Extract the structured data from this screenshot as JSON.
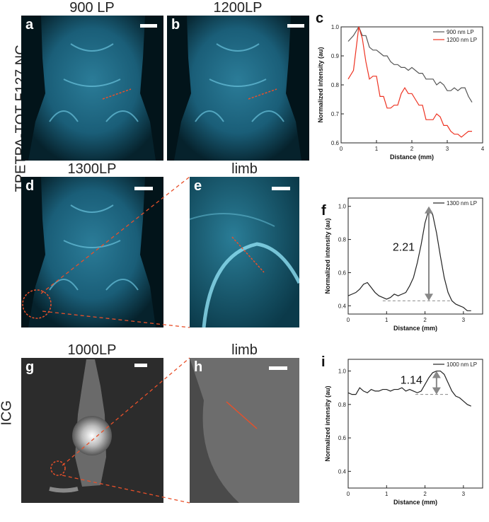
{
  "row_labels": {
    "row1": "TPETPA-TQT F127 NC",
    "row3": "ICG"
  },
  "panels": {
    "a": {
      "letter": "a",
      "title": "900 LP"
    },
    "b": {
      "letter": "b",
      "title": "1200LP"
    },
    "d": {
      "letter": "d",
      "title": "1300LP"
    },
    "e": {
      "letter": "e",
      "title": "limb"
    },
    "g": {
      "letter": "g",
      "title": "1000LP"
    },
    "h": {
      "letter": "h",
      "title": "limb"
    }
  },
  "chart_data": [
    {
      "id": "c",
      "type": "line",
      "letter": "c",
      "xlabel": "Distance (mm)",
      "ylabel": "Normalized intensity (au)",
      "xlim": [
        0,
        4
      ],
      "ylim": [
        0.6,
        1.0
      ],
      "xticks": [
        "0",
        "1",
        "2",
        "3",
        "4"
      ],
      "yticks": [
        "0.6",
        "0.7",
        "0.8",
        "0.9",
        "1.0"
      ],
      "series": [
        {
          "name": "900 nm LP",
          "color": "#555555",
          "x": [
            0.2,
            0.35,
            0.5,
            0.6,
            0.7,
            0.8,
            0.9,
            1.0,
            1.1,
            1.2,
            1.3,
            1.4,
            1.5,
            1.6,
            1.7,
            1.8,
            1.9,
            2.0,
            2.1,
            2.2,
            2.3,
            2.4,
            2.5,
            2.6,
            2.7,
            2.8,
            2.9,
            3.0,
            3.1,
            3.2,
            3.3,
            3.4,
            3.5,
            3.6,
            3.7
          ],
          "y": [
            0.95,
            0.97,
            1.0,
            0.97,
            0.97,
            0.93,
            0.92,
            0.92,
            0.91,
            0.9,
            0.9,
            0.88,
            0.87,
            0.87,
            0.86,
            0.86,
            0.85,
            0.86,
            0.85,
            0.84,
            0.84,
            0.82,
            0.82,
            0.82,
            0.8,
            0.81,
            0.8,
            0.78,
            0.78,
            0.79,
            0.78,
            0.79,
            0.79,
            0.76,
            0.74
          ]
        },
        {
          "name": "1200 nm LP",
          "color": "#ee3322",
          "x": [
            0.2,
            0.35,
            0.5,
            0.6,
            0.7,
            0.8,
            0.9,
            1.0,
            1.1,
            1.2,
            1.3,
            1.4,
            1.5,
            1.6,
            1.7,
            1.8,
            1.9,
            2.0,
            2.1,
            2.2,
            2.3,
            2.4,
            2.5,
            2.6,
            2.7,
            2.8,
            2.9,
            3.0,
            3.1,
            3.2,
            3.3,
            3.4,
            3.5,
            3.6,
            3.7
          ],
          "y": [
            0.82,
            0.85,
            1.0,
            0.96,
            0.88,
            0.82,
            0.83,
            0.83,
            0.76,
            0.76,
            0.72,
            0.72,
            0.73,
            0.73,
            0.77,
            0.79,
            0.77,
            0.77,
            0.75,
            0.73,
            0.73,
            0.68,
            0.68,
            0.68,
            0.7,
            0.69,
            0.66,
            0.66,
            0.64,
            0.63,
            0.63,
            0.62,
            0.63,
            0.64,
            0.64
          ]
        }
      ]
    },
    {
      "id": "f",
      "type": "line",
      "letter": "f",
      "xlabel": "Distance (mm)",
      "ylabel": "Normalized intensity (au)",
      "xlim": [
        0,
        3.5
      ],
      "ylim": [
        0.35,
        1.05
      ],
      "xticks": [
        "0",
        "1",
        "2",
        "3"
      ],
      "yticks": [
        "0.4",
        "0.6",
        "0.8",
        "1.0"
      ],
      "annotation": "2.21",
      "peak_x": 2.1,
      "peak_y": 1.0,
      "base_y": 0.43,
      "base_x0": 0.9,
      "base_x1": 2.65,
      "series": [
        {
          "name": "1300 nm LP",
          "color": "#222222",
          "x": [
            0,
            0.1,
            0.2,
            0.3,
            0.4,
            0.5,
            0.6,
            0.7,
            0.8,
            0.9,
            1.0,
            1.1,
            1.2,
            1.3,
            1.4,
            1.5,
            1.6,
            1.7,
            1.8,
            1.9,
            2.0,
            2.1,
            2.2,
            2.3,
            2.4,
            2.5,
            2.6,
            2.7,
            2.8,
            2.9,
            3.0,
            3.1,
            3.2
          ],
          "y": [
            0.46,
            0.47,
            0.48,
            0.5,
            0.53,
            0.54,
            0.51,
            0.48,
            0.46,
            0.45,
            0.44,
            0.45,
            0.47,
            0.46,
            0.47,
            0.48,
            0.52,
            0.57,
            0.66,
            0.77,
            0.9,
            0.98,
            0.95,
            0.84,
            0.7,
            0.57,
            0.48,
            0.43,
            0.41,
            0.4,
            0.39,
            0.37,
            0.37
          ]
        }
      ]
    },
    {
      "id": "i",
      "type": "line",
      "letter": "i",
      "xlabel": "Distance (mm)",
      "ylabel": "Normalized intensity (au)",
      "xlim": [
        0,
        3.5
      ],
      "ylim": [
        0.3,
        1.07
      ],
      "xticks": [
        "0",
        "1",
        "2",
        "3"
      ],
      "yticks": [
        "0.4",
        "0.6",
        "0.8",
        "1.0"
      ],
      "annotation": "1.14",
      "peak_x": 2.3,
      "peak_y": 1.0,
      "base_y": 0.86,
      "base_x0": 1.75,
      "base_x1": 2.6,
      "series": [
        {
          "name": "1000 nm LP",
          "color": "#222222",
          "x": [
            0,
            0.1,
            0.2,
            0.3,
            0.4,
            0.5,
            0.6,
            0.7,
            0.8,
            0.9,
            1.0,
            1.1,
            1.2,
            1.3,
            1.4,
            1.5,
            1.6,
            1.7,
            1.8,
            1.9,
            2.0,
            2.1,
            2.2,
            2.3,
            2.4,
            2.5,
            2.6,
            2.7,
            2.8,
            2.9,
            3.0,
            3.1,
            3.2
          ],
          "y": [
            0.87,
            0.86,
            0.86,
            0.9,
            0.88,
            0.87,
            0.89,
            0.88,
            0.88,
            0.89,
            0.89,
            0.88,
            0.89,
            0.89,
            0.9,
            0.88,
            0.89,
            0.88,
            0.87,
            0.88,
            0.92,
            0.96,
            0.99,
            1.0,
            1.0,
            0.98,
            0.93,
            0.88,
            0.85,
            0.84,
            0.82,
            0.8,
            0.79
          ]
        }
      ]
    }
  ]
}
